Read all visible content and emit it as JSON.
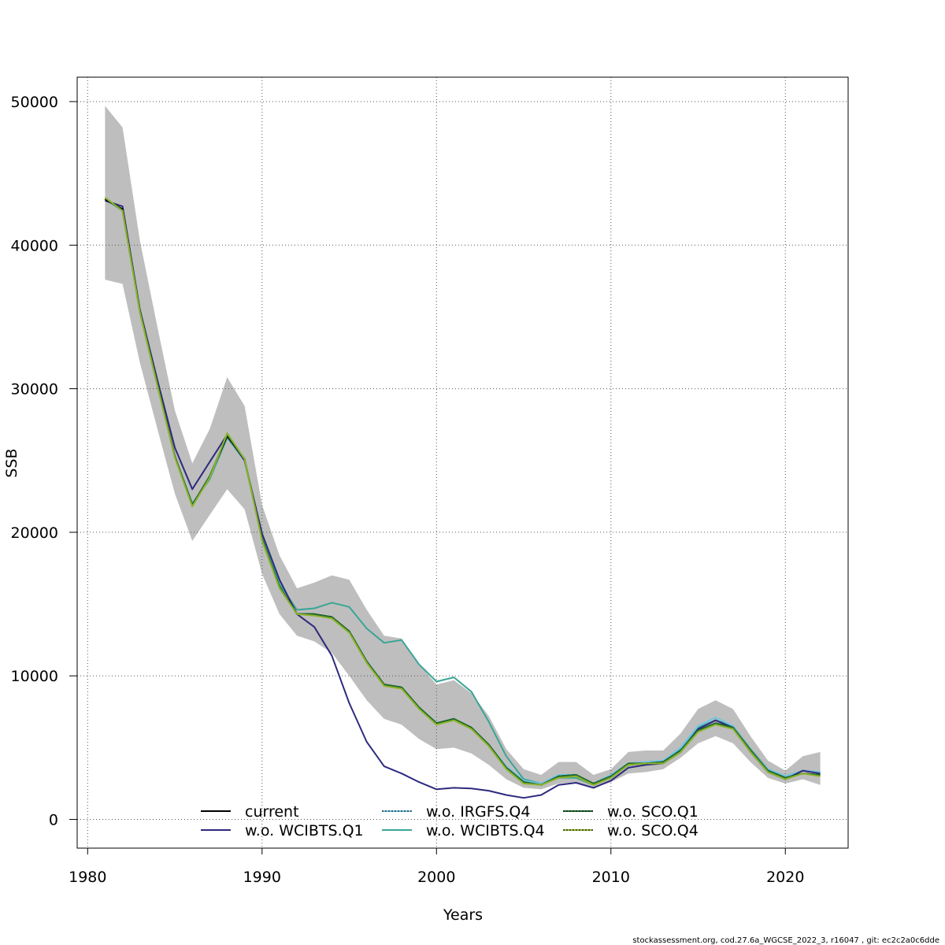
{
  "chart_data": {
    "type": "line",
    "xlabel": "Years",
    "ylabel": "SSB",
    "xlim": [
      1979.4,
      2023.6
    ],
    "ylim": [
      -2000,
      51700
    ],
    "x_ticks": [
      1980,
      1990,
      2000,
      2010,
      2020
    ],
    "y_ticks": [
      0,
      10000,
      20000,
      30000,
      40000,
      50000
    ],
    "grid": true,
    "legend_position": "bottom",
    "footer": "stockassessment.org, cod.27.6a_WGCSE_2022_3, r16047 , git: ec2c2a0c6dde",
    "x": [
      1981,
      1982,
      1983,
      1984,
      1985,
      1986,
      1987,
      1988,
      1989,
      1990,
      1991,
      1992,
      1993,
      1994,
      1995,
      1996,
      1997,
      1998,
      1999,
      2000,
      2001,
      2002,
      2003,
      2004,
      2005,
      2006,
      2007,
      2008,
      2009,
      2010,
      2011,
      2012,
      2013,
      2014,
      2015,
      2016,
      2017,
      2018,
      2019,
      2020,
      2021,
      2022
    ],
    "band": {
      "color": "#bebebe",
      "lower": [
        37600,
        37300,
        31800,
        27200,
        22700,
        19400,
        21200,
        23000,
        21600,
        17100,
        14300,
        12800,
        12400,
        11600,
        10000,
        8300,
        7000,
        6600,
        5600,
        4900,
        5000,
        4600,
        3800,
        2800,
        2200,
        2100,
        2500,
        2600,
        2200,
        2600,
        3200,
        3300,
        3500,
        4300,
        5300,
        5800,
        5300,
        4000,
        2900,
        2500,
        2800,
        2400
      ],
      "upper": [
        49700,
        48200,
        40300,
        34300,
        28500,
        24800,
        27200,
        30800,
        28800,
        21900,
        18400,
        16100,
        16500,
        17000,
        16700,
        14600,
        12800,
        12600,
        10800,
        9400,
        9700,
        8800,
        7200,
        4900,
        3500,
        3100,
        4000,
        4000,
        3100,
        3500,
        4700,
        4800,
        4800,
        6000,
        7700,
        8300,
        7700,
        5800,
        4100,
        3400,
        4400,
        4700
      ]
    },
    "series": [
      {
        "name": "current",
        "color": "#000000",
        "dashed": false,
        "values": [
          43200,
          42500,
          35400,
          30300,
          25300,
          21900,
          23900,
          26700,
          25100,
          19500,
          16200,
          14300,
          14300,
          14100,
          13100,
          11000,
          9400,
          9200,
          7800,
          6700,
          7000,
          6400,
          5200,
          3600,
          2600,
          2400,
          3000,
          3100,
          2500,
          3000,
          3800,
          3900,
          4000,
          4800,
          6200,
          6700,
          6400,
          4800,
          3400,
          2900,
          3200,
          3100
        ]
      },
      {
        "name": "w.o. WCIBTS.Q1",
        "color": "#2d2a7e",
        "dashed": false,
        "values": [
          43100,
          42700,
          35500,
          30600,
          25900,
          23000,
          24900,
          26800,
          25000,
          19900,
          16700,
          14300,
          13400,
          11400,
          8100,
          5400,
          3700,
          3200,
          2600,
          2100,
          2200,
          2150,
          2000,
          1700,
          1500,
          1700,
          2400,
          2550,
          2200,
          2700,
          3600,
          3800,
          3900,
          4700,
          6300,
          6900,
          6400,
          4700,
          3300,
          2800,
          3400,
          3200
        ]
      },
      {
        "name": "w.o. IRGFS.Q4",
        "color": "#6fc5e2",
        "dashed": true,
        "values": [
          43200,
          42500,
          35400,
          30300,
          25300,
          21900,
          23900,
          26700,
          25100,
          19500,
          16200,
          14300,
          14300,
          14100,
          13100,
          11000,
          9400,
          9200,
          7800,
          6700,
          7000,
          6400,
          5200,
          3700,
          2700,
          2500,
          3100,
          3100,
          2500,
          3100,
          3900,
          4000,
          4100,
          5000,
          6500,
          7100,
          6500,
          4800,
          3500,
          3000,
          3400,
          3300
        ]
      },
      {
        "name": "w.o. WCIBTS.Q4",
        "color": "#3aa596",
        "dashed": false,
        "values": [
          43200,
          42400,
          35300,
          30200,
          25300,
          22000,
          23700,
          26600,
          25000,
          19600,
          16400,
          14600,
          14700,
          15100,
          14800,
          13300,
          12300,
          12500,
          10800,
          9600,
          9900,
          8900,
          6800,
          4400,
          2800,
          2500,
          2900,
          2900,
          2400,
          2900,
          3800,
          3900,
          4000,
          4900,
          6400,
          6900,
          6500,
          4900,
          3500,
          3000,
          3400,
          3300
        ]
      },
      {
        "name": "w.o. SCO.Q1",
        "color": "#1e6b2c",
        "dashed": true,
        "values": [
          43300,
          42400,
          35400,
          30300,
          25300,
          21900,
          23900,
          26800,
          25100,
          19500,
          16200,
          14300,
          14300,
          14100,
          13100,
          11000,
          9400,
          9200,
          7800,
          6700,
          7000,
          6400,
          5200,
          3600,
          2600,
          2400,
          3000,
          3100,
          2500,
          3000,
          3900,
          3900,
          4000,
          4800,
          6200,
          6700,
          6400,
          4800,
          3400,
          2900,
          3200,
          3100
        ]
      },
      {
        "name": "w.o. SCO.Q4",
        "color": "#8db32a",
        "dashed": true,
        "values": [
          43300,
          42400,
          35300,
          30200,
          25200,
          21800,
          23800,
          26900,
          25100,
          19400,
          16100,
          14300,
          14200,
          14000,
          13000,
          10900,
          9300,
          9100,
          7700,
          6600,
          6900,
          6300,
          5100,
          3500,
          2500,
          2400,
          2900,
          3000,
          2400,
          2900,
          3800,
          3900,
          3900,
          4700,
          6100,
          6600,
          6300,
          4700,
          3300,
          2800,
          3200,
          3000
        ]
      }
    ]
  }
}
